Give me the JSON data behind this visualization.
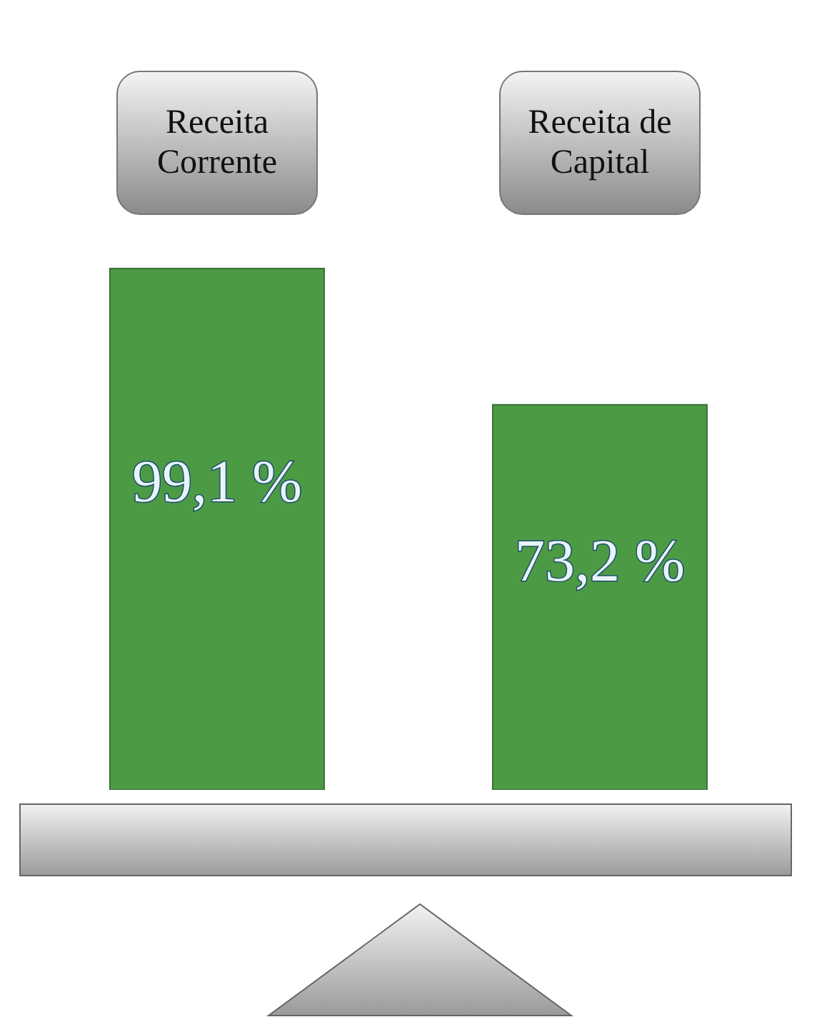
{
  "chart_data": {
    "type": "bar",
    "categories": [
      "Receita Corrente",
      "Receita de Capital"
    ],
    "values": [
      99.1,
      73.2
    ],
    "color": "#4d9a45",
    "value_labels": [
      "99,1 %",
      "73,2 %"
    ],
    "grid": false
  }
}
